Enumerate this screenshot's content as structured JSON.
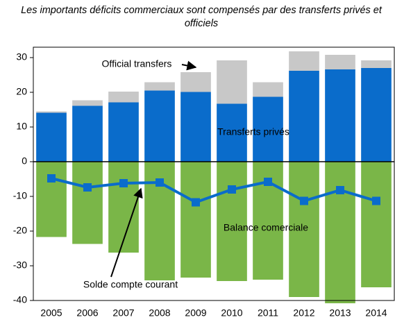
{
  "chart_data": {
    "type": "bar",
    "title": "Les importants déficits commerciaux sont compensés par des transferts privés et officiels",
    "categories": [
      "2005",
      "2006",
      "2007",
      "2008",
      "2009",
      "2010",
      "2011",
      "2012",
      "2013",
      "2014"
    ],
    "series": [
      {
        "name": "Transferts privés",
        "color": "#0a6ccb",
        "type": "bar",
        "stack": "pos",
        "values": [
          14.1,
          16.1,
          17.1,
          20.5,
          20.1,
          16.7,
          18.7,
          26.2,
          26.6,
          27.0
        ]
      },
      {
        "name": "Official transfers",
        "color": "#c8c8c8",
        "type": "bar",
        "stack": "pos",
        "values": [
          0.4,
          1.6,
          3.1,
          2.4,
          5.7,
          12.5,
          4.2,
          5.6,
          4.2,
          2.2
        ]
      },
      {
        "name": "Balance comerciale",
        "color": "#7ab648",
        "type": "bar",
        "stack": "neg",
        "values": [
          -21.7,
          -23.7,
          -26.2,
          -34.2,
          -33.4,
          -34.4,
          -34.0,
          -39.0,
          -40.8,
          -36.2
        ]
      },
      {
        "name": "Solde compte courant",
        "color": "#0a6ccb",
        "type": "line",
        "values": [
          -4.8,
          -7.4,
          -6.2,
          -6.0,
          -11.7,
          -8.0,
          -5.8,
          -11.3,
          -8.2,
          -11.3
        ]
      }
    ],
    "ylim": [
      -40,
      33
    ],
    "yticks": [
      -40,
      -30,
      -20,
      -10,
      0,
      10,
      20,
      30
    ]
  }
}
